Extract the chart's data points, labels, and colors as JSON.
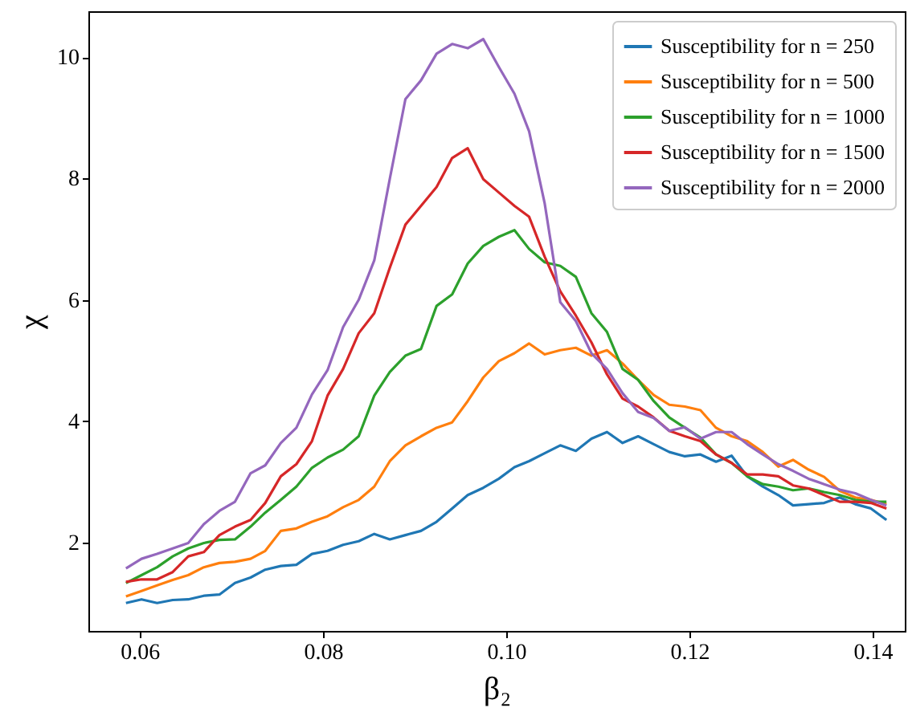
{
  "chart_data": {
    "type": "line",
    "xlabel": "β₂",
    "ylabel": "χ",
    "x": [
      0.0585,
      0.0602,
      0.0619,
      0.0636,
      0.0653,
      0.067,
      0.0687,
      0.0704,
      0.0721,
      0.0737,
      0.0754,
      0.0771,
      0.0788,
      0.0805,
      0.0822,
      0.0839,
      0.0856,
      0.0873,
      0.089,
      0.0907,
      0.0924,
      0.0941,
      0.0958,
      0.0975,
      0.0992,
      0.1009,
      0.1025,
      0.1042,
      0.1059,
      0.1076,
      0.1093,
      0.111,
      0.1127,
      0.1144,
      0.1161,
      0.1178,
      0.1195,
      0.1212,
      0.1229,
      0.1246,
      0.1263,
      0.128,
      0.1297,
      0.1313,
      0.133,
      0.1347,
      0.1364,
      0.1381,
      0.1398,
      0.1415
    ],
    "series": [
      {
        "name": "Susceptibility for n = 250",
        "color": "#1f77b4",
        "values": [
          1.0,
          1.06,
          1.0,
          1.05,
          1.06,
          1.12,
          1.14,
          1.33,
          1.42,
          1.55,
          1.61,
          1.63,
          1.81,
          1.86,
          1.96,
          2.02,
          2.14,
          2.05,
          2.12,
          2.19,
          2.34,
          2.56,
          2.78,
          2.9,
          3.05,
          3.24,
          3.34,
          3.47,
          3.6,
          3.51,
          3.71,
          3.82,
          3.64,
          3.75,
          3.62,
          3.49,
          3.42,
          3.45,
          3.33,
          3.43,
          3.09,
          2.92,
          2.78,
          2.61,
          2.63,
          2.65,
          2.74,
          2.63,
          2.56,
          2.37
        ]
      },
      {
        "name": "Susceptibility for n = 500",
        "color": "#ff7f0e",
        "values": [
          1.11,
          1.2,
          1.29,
          1.38,
          1.46,
          1.59,
          1.66,
          1.68,
          1.73,
          1.86,
          2.19,
          2.23,
          2.34,
          2.43,
          2.58,
          2.7,
          2.92,
          3.34,
          3.6,
          3.75,
          3.89,
          3.98,
          4.33,
          4.72,
          4.99,
          5.12,
          5.28,
          5.1,
          5.17,
          5.21,
          5.08,
          5.17,
          4.95,
          4.68,
          4.43,
          4.27,
          4.24,
          4.18,
          3.89,
          3.75,
          3.67,
          3.49,
          3.25,
          3.36,
          3.2,
          3.08,
          2.85,
          2.74,
          2.7,
          2.63
        ]
      },
      {
        "name": "Susceptibility for n = 1000",
        "color": "#2ca02c",
        "values": [
          1.33,
          1.46,
          1.59,
          1.77,
          1.9,
          1.99,
          2.04,
          2.05,
          2.26,
          2.49,
          2.7,
          2.92,
          3.23,
          3.4,
          3.53,
          3.75,
          4.42,
          4.81,
          5.08,
          5.19,
          5.9,
          6.09,
          6.6,
          6.89,
          7.04,
          7.15,
          6.84,
          6.62,
          6.56,
          6.38,
          5.78,
          5.47,
          4.86,
          4.68,
          4.33,
          4.06,
          3.89,
          3.73,
          3.45,
          3.31,
          3.09,
          2.96,
          2.92,
          2.86,
          2.89,
          2.83,
          2.78,
          2.7,
          2.67,
          2.67
        ]
      },
      {
        "name": "Susceptibility for n = 1500",
        "color": "#d62728",
        "values": [
          1.35,
          1.39,
          1.39,
          1.51,
          1.77,
          1.84,
          2.12,
          2.26,
          2.37,
          2.65,
          3.09,
          3.29,
          3.67,
          4.42,
          4.86,
          5.45,
          5.78,
          6.53,
          7.24,
          7.55,
          7.86,
          8.34,
          8.5,
          7.99,
          7.77,
          7.55,
          7.37,
          6.71,
          6.14,
          5.74,
          5.3,
          4.77,
          4.37,
          4.24,
          4.06,
          3.84,
          3.75,
          3.67,
          3.45,
          3.31,
          3.12,
          3.12,
          3.09,
          2.94,
          2.89,
          2.78,
          2.67,
          2.67,
          2.65,
          2.56
        ]
      },
      {
        "name": "Susceptibility for n = 2000",
        "color": "#9467bd",
        "values": [
          1.57,
          1.73,
          1.81,
          1.9,
          1.99,
          2.3,
          2.52,
          2.67,
          3.14,
          3.27,
          3.64,
          3.89,
          4.44,
          4.84,
          5.55,
          6.0,
          6.65,
          8.0,
          9.31,
          9.62,
          10.06,
          10.22,
          10.15,
          10.3,
          9.84,
          9.4,
          8.78,
          7.59,
          5.96,
          5.65,
          5.12,
          4.86,
          4.46,
          4.15,
          4.05,
          3.84,
          3.9,
          3.71,
          3.82,
          3.82,
          3.62,
          3.45,
          3.29,
          3.18,
          3.05,
          2.96,
          2.87,
          2.81,
          2.7,
          2.61
        ]
      }
    ],
    "xlim": [
      0.0544,
      0.1435
    ],
    "ylim": [
      0.54,
      10.76
    ],
    "xticks": [
      {
        "value": 0.06,
        "label": "0.06"
      },
      {
        "value": 0.08,
        "label": "0.08"
      },
      {
        "value": 0.1,
        "label": "0.10"
      },
      {
        "value": 0.12,
        "label": "0.12"
      },
      {
        "value": 0.14,
        "label": "0.14"
      }
    ],
    "yticks": [
      2,
      4,
      6,
      8,
      10
    ],
    "grid": false,
    "legend": "top right",
    "marker": "none",
    "line_style": "solid"
  }
}
